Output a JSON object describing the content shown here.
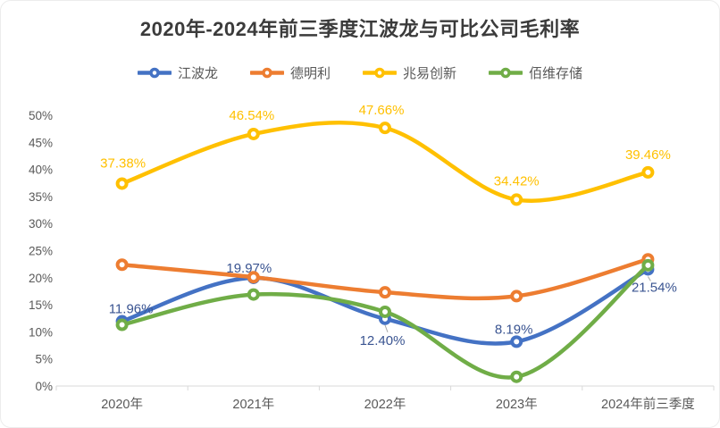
{
  "chart_data": {
    "type": "line",
    "title": "2020年-2024年前三季度江波龙与可比公司毛利率",
    "categories": [
      "2020年",
      "2021年",
      "2022年",
      "2023年",
      "2024年前三季度"
    ],
    "y_axis": {
      "min": 0,
      "max": 50,
      "step": 5,
      "tick_labels": [
        "0%",
        "5%",
        "10%",
        "15%",
        "20%",
        "25%",
        "30%",
        "35%",
        "40%",
        "45%",
        "50%"
      ]
    },
    "x_axis_label": "",
    "y_axis_label": "",
    "grid": false,
    "line_style": "smooth",
    "legend_position": "top",
    "axis_color": "#d9d9d9",
    "tick_text_color": "#595959",
    "leader_line_color": "#a6a6a6",
    "series": [
      {
        "id": "jiangbolong",
        "name": "江波龙",
        "color": "#4472c4",
        "label_color": "#3a5491",
        "values": [
          11.96,
          19.97,
          12.4,
          8.19,
          21.54
        ],
        "data_labels": [
          "11.96%",
          "19.97%",
          "12.40%",
          "8.19%",
          "21.54%"
        ],
        "label_offsets": [
          [
            10,
            -14
          ],
          [
            -5,
            -11
          ],
          [
            -3,
            24
          ],
          [
            -3,
            -14
          ],
          [
            7,
            20
          ]
        ],
        "label_leaders": [
          null,
          null,
          [
            [
              0,
              7
            ],
            [
              3,
              15
            ]
          ],
          null,
          [
            [
              0,
              8
            ],
            [
              3,
              13
            ]
          ]
        ]
      },
      {
        "id": "demingli",
        "name": "德明利",
        "color": "#ed7d31",
        "label_color": "#ed7d31",
        "values": [
          22.4,
          20.1,
          17.3,
          16.6,
          23.4
        ],
        "data_labels": null,
        "label_offsets": null,
        "label_leaders": null
      },
      {
        "id": "zhaoyichuangxin",
        "name": "兆易创新",
        "color": "#ffc000",
        "label_color": "#ffc000",
        "values": [
          37.38,
          46.54,
          47.66,
          34.42,
          39.46
        ],
        "data_labels": [
          "37.38%",
          "46.54%",
          "47.66%",
          "34.42%",
          "39.46%"
        ],
        "label_offsets": [
          [
            1,
            -23
          ],
          [
            -2,
            -21
          ],
          [
            -4,
            -20
          ],
          [
            0,
            -21
          ],
          [
            0,
            -20
          ]
        ],
        "label_leaders": null
      },
      {
        "id": "baiweicunchu",
        "name": "佰维存储",
        "color": "#70ad47",
        "label_color": "#70ad47",
        "values": [
          11.3,
          16.9,
          13.7,
          1.7,
          22.3
        ],
        "data_labels": null,
        "label_offsets": null,
        "label_leaders": null
      }
    ]
  }
}
